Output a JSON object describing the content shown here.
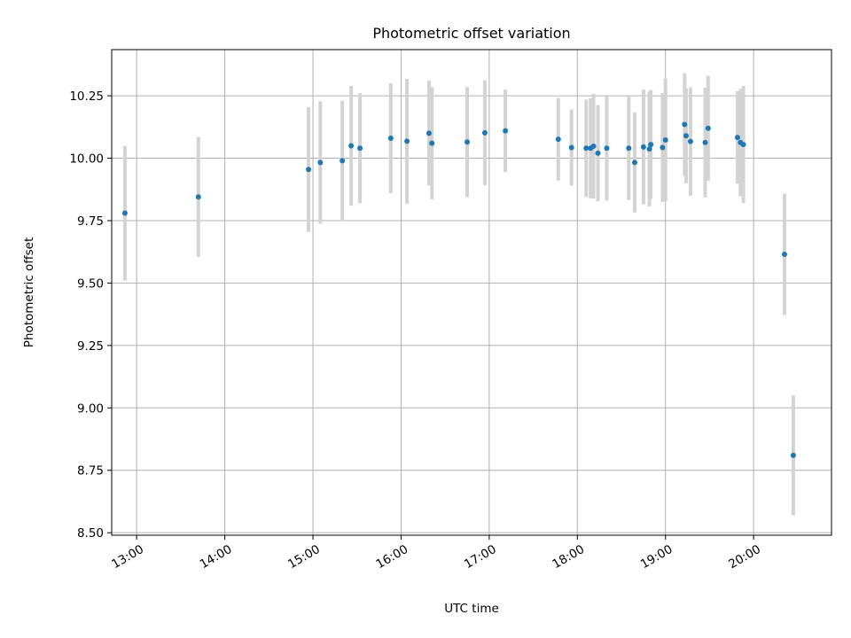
{
  "chart_data": {
    "type": "scatter",
    "title": "Photometric offset variation",
    "xlabel": "UTC time",
    "ylabel": "Photometric offset",
    "x_unit": "time of day (UTC)",
    "xlim": [
      "12:43",
      "20:53"
    ],
    "ylim": [
      8.49,
      10.435
    ],
    "x_ticks": [
      "13:00",
      "14:00",
      "15:00",
      "16:00",
      "17:00",
      "18:00",
      "19:00",
      "20:00"
    ],
    "y_ticks": [
      "8.50",
      "8.75",
      "9.00",
      "9.25",
      "9.50",
      "9.75",
      "10.00",
      "10.25"
    ],
    "grid": true,
    "marker_color": "#1f77b4",
    "errorbar_color": "#d3d3d3",
    "points": [
      {
        "x": "12:52",
        "y": 9.78,
        "yerr": 0.27
      },
      {
        "x": "13:42",
        "y": 9.845,
        "yerr": 0.24
      },
      {
        "x": "14:57",
        "y": 9.955,
        "yerr": 0.25
      },
      {
        "x": "15:05",
        "y": 9.983,
        "yerr": 0.245
      },
      {
        "x": "15:20",
        "y": 9.99,
        "yerr": 0.24
      },
      {
        "x": "15:26",
        "y": 10.05,
        "yerr": 0.24
      },
      {
        "x": "15:32",
        "y": 10.04,
        "yerr": 0.22
      },
      {
        "x": "15:53",
        "y": 10.08,
        "yerr": 0.22
      },
      {
        "x": "16:04",
        "y": 10.068,
        "yerr": 0.25
      },
      {
        "x": "16:19",
        "y": 10.1,
        "yerr": 0.21
      },
      {
        "x": "16:21",
        "y": 10.06,
        "yerr": 0.225
      },
      {
        "x": "16:45",
        "y": 10.065,
        "yerr": 0.22
      },
      {
        "x": "16:57",
        "y": 10.102,
        "yerr": 0.21
      },
      {
        "x": "17:11",
        "y": 10.11,
        "yerr": 0.165
      },
      {
        "x": "17:47",
        "y": 10.076,
        "yerr": 0.165
      },
      {
        "x": "17:56",
        "y": 10.043,
        "yerr": 0.153
      },
      {
        "x": "18:06",
        "y": 10.04,
        "yerr": 0.195
      },
      {
        "x": "18:09",
        "y": 10.04,
        "yerr": 0.2
      },
      {
        "x": "18:11",
        "y": 10.048,
        "yerr": 0.21
      },
      {
        "x": "18:14",
        "y": 10.02,
        "yerr": 0.193
      },
      {
        "x": "18:20",
        "y": 10.04,
        "yerr": 0.21
      },
      {
        "x": "18:35",
        "y": 10.04,
        "yerr": 0.207
      },
      {
        "x": "18:39",
        "y": 9.983,
        "yerr": 0.2
      },
      {
        "x": "18:45",
        "y": 10.045,
        "yerr": 0.23
      },
      {
        "x": "18:49",
        "y": 10.037,
        "yerr": 0.23
      },
      {
        "x": "18:50",
        "y": 10.055,
        "yerr": 0.218
      },
      {
        "x": "18:58",
        "y": 10.043,
        "yerr": 0.218
      },
      {
        "x": "19:00",
        "y": 10.073,
        "yerr": 0.245
      },
      {
        "x": "19:13",
        "y": 10.135,
        "yerr": 0.205
      },
      {
        "x": "19:14",
        "y": 10.09,
        "yerr": 0.19
      },
      {
        "x": "19:17",
        "y": 10.067,
        "yerr": 0.217
      },
      {
        "x": "19:27",
        "y": 10.063,
        "yerr": 0.22
      },
      {
        "x": "19:29",
        "y": 10.12,
        "yerr": 0.21
      },
      {
        "x": "19:49",
        "y": 10.083,
        "yerr": 0.185
      },
      {
        "x": "19:51",
        "y": 10.063,
        "yerr": 0.215
      },
      {
        "x": "19:53",
        "y": 10.055,
        "yerr": 0.235
      },
      {
        "x": "20:21",
        "y": 9.615,
        "yerr": 0.243
      },
      {
        "x": "20:27",
        "y": 8.81,
        "yerr": 0.24
      }
    ]
  }
}
